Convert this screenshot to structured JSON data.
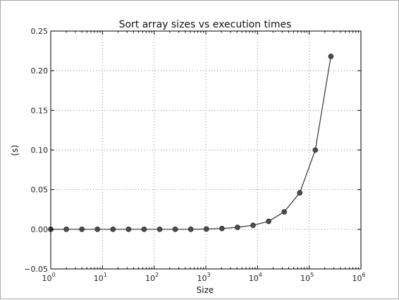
{
  "chart_data": {
    "type": "line",
    "title": "Sort array sizes vs execution times",
    "xlabel": "Size",
    "ylabel": "(s)",
    "xscale": "log",
    "xlim": [
      1,
      1000000
    ],
    "ylim": [
      -0.05,
      0.25
    ],
    "grid": true,
    "x_ticks": [
      {
        "value": 1,
        "base": "10",
        "exp": "0"
      },
      {
        "value": 10,
        "base": "10",
        "exp": "1"
      },
      {
        "value": 100,
        "base": "10",
        "exp": "2"
      },
      {
        "value": 1000,
        "base": "10",
        "exp": "3"
      },
      {
        "value": 10000,
        "base": "10",
        "exp": "4"
      },
      {
        "value": 100000,
        "base": "10",
        "exp": "5"
      },
      {
        "value": 1000000,
        "base": "10",
        "exp": "6"
      }
    ],
    "y_ticks": [
      {
        "value": -0.05,
        "label": "−0.05"
      },
      {
        "value": 0.0,
        "label": "0.00"
      },
      {
        "value": 0.05,
        "label": "0.05"
      },
      {
        "value": 0.1,
        "label": "0.10"
      },
      {
        "value": 0.15,
        "label": "0.15"
      },
      {
        "value": 0.2,
        "label": "0.20"
      },
      {
        "value": 0.25,
        "label": "0.25"
      }
    ],
    "series": [
      {
        "line_color": "#333333",
        "marker_color": "#5a4848",
        "x": [
          1,
          2,
          4,
          8,
          16,
          32,
          64,
          128,
          256,
          512,
          1024,
          2048,
          4096,
          8192,
          16384,
          32768,
          65536,
          131072,
          262144
        ],
        "y": [
          0.0,
          0.0,
          0.0,
          0.0,
          0.0,
          0.0,
          0.0,
          0.0,
          0.0,
          0.0,
          0.0004,
          0.001,
          0.0025,
          0.005,
          0.01,
          0.022,
          0.046,
          0.1,
          0.218
        ]
      }
    ]
  }
}
